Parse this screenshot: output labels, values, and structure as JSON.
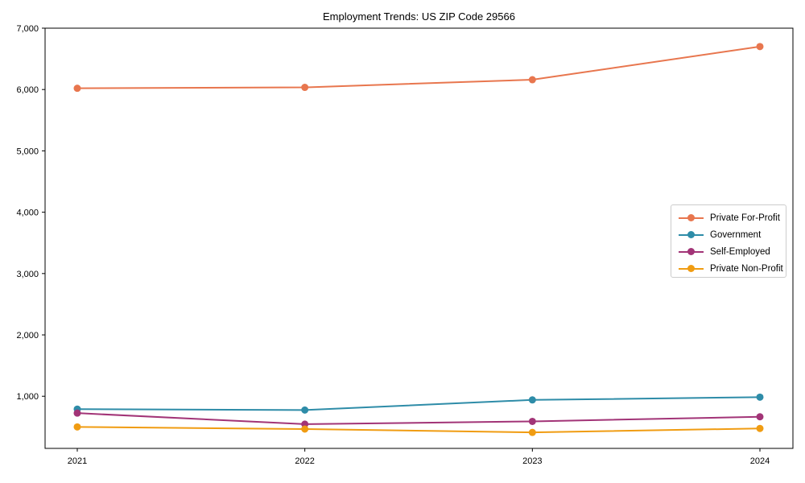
{
  "chart_data": {
    "type": "line",
    "title": "Employment Trends: US ZIP Code 29566",
    "x": [
      "2021",
      "2022",
      "2023",
      "2024"
    ],
    "series": [
      {
        "name": "Private For-Profit",
        "color": "#E8764E",
        "values": [
          6020,
          6035,
          6160,
          6700
        ]
      },
      {
        "name": "Government",
        "color": "#2E8CA8",
        "values": [
          790,
          775,
          940,
          985
        ]
      },
      {
        "name": "Self-Employed",
        "color": "#A23477",
        "values": [
          725,
          545,
          590,
          665
        ]
      },
      {
        "name": "Private Non-Profit",
        "color": "#F09C12",
        "values": [
          500,
          465,
          410,
          475
        ]
      }
    ],
    "xlabel": "",
    "ylabel": "",
    "ylim": [
      150,
      7000
    ],
    "yticks": [
      1000,
      2000,
      3000,
      4000,
      5000,
      6000,
      7000
    ],
    "ytick_labels": [
      "1,000",
      "2,000",
      "3,000",
      "4,000",
      "5,000",
      "6,000",
      "7,000"
    ],
    "grid": false,
    "legend_position": "center right",
    "axis_color": "#000000",
    "background_color": "#ffffff"
  }
}
